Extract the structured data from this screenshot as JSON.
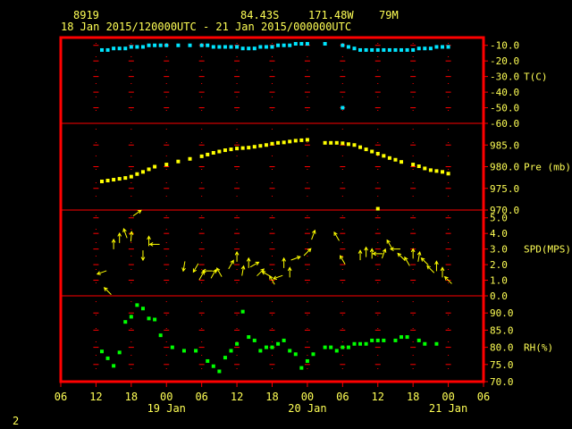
{
  "header": {
    "station": "8919",
    "lat": "84.43S",
    "lon": "171.48W",
    "elev": "79M",
    "time_range": "18 Jan 2015/120000UTC - 21 Jan 2015/000000UTC"
  },
  "page_number": "2",
  "colors": {
    "frame": "#ff0000",
    "grid": "#ff0000",
    "text": "#ffff55",
    "temp": "#00e5ff",
    "pres": "#ffff00",
    "wind": "#ffff00",
    "rh": "#00ff00"
  },
  "chart_data": {
    "type": "scatter",
    "x_units": "hours since 00 UTC 18 Jan 2015",
    "x_range": [
      6,
      78
    ],
    "x_ticks": [
      6,
      12,
      18,
      24,
      30,
      36,
      42,
      48,
      54,
      60,
      66,
      72,
      78
    ],
    "x_tick_labels": [
      "06",
      "12",
      "18",
      "00",
      "06",
      "12",
      "18",
      "00",
      "06",
      "12",
      "18",
      "00",
      "06"
    ],
    "day_labels": [
      {
        "x": 24,
        "text": "19 Jan"
      },
      {
        "x": 48,
        "text": "20 Jan"
      },
      {
        "x": 72,
        "text": "21 Jan"
      }
    ],
    "panels": [
      {
        "id": "temp",
        "label": "T(C)",
        "ylim": [
          -60,
          -5
        ],
        "ticks": [
          -10,
          -20,
          -30,
          -40,
          -50,
          -60
        ],
        "tick_labels": [
          "-10.0",
          "-20.0",
          "-30.0",
          "-40.0",
          "-50.0",
          "-60.0"
        ],
        "series": [
          {
            "marker": "square",
            "color": "#00e5ff",
            "points": [
              [
                13,
                -13
              ],
              [
                14,
                -13
              ],
              [
                15,
                -12
              ],
              [
                16,
                -12
              ],
              [
                17,
                -12
              ],
              [
                18,
                -11
              ],
              [
                19,
                -11
              ],
              [
                20,
                -11
              ],
              [
                21,
                -10
              ],
              [
                22,
                -10
              ],
              [
                23,
                -10
              ],
              [
                24,
                -10
              ],
              [
                26,
                -10
              ],
              [
                28,
                -10
              ],
              [
                30,
                -10
              ],
              [
                31,
                -10
              ],
              [
                32,
                -11
              ],
              [
                33,
                -11
              ],
              [
                34,
                -11
              ],
              [
                35,
                -11
              ],
              [
                36,
                -11
              ],
              [
                37,
                -12
              ],
              [
                38,
                -12
              ],
              [
                39,
                -12
              ],
              [
                40,
                -11
              ],
              [
                41,
                -11
              ],
              [
                42,
                -11
              ],
              [
                43,
                -10
              ],
              [
                44,
                -10
              ],
              [
                45,
                -10
              ],
              [
                46,
                -9
              ],
              [
                47,
                -9
              ],
              [
                48,
                -9
              ],
              [
                51,
                -9
              ],
              [
                54,
                -10
              ],
              [
                55,
                -11
              ],
              [
                56,
                -12
              ],
              [
                57,
                -13
              ],
              [
                58,
                -13
              ],
              [
                59,
                -13
              ],
              [
                60,
                -13
              ],
              [
                61,
                -13
              ],
              [
                62,
                -13
              ],
              [
                63,
                -13
              ],
              [
                64,
                -13
              ],
              [
                65,
                -13
              ],
              [
                66,
                -13
              ],
              [
                67,
                -12
              ],
              [
                68,
                -12
              ],
              [
                69,
                -12
              ],
              [
                70,
                -11
              ],
              [
                71,
                -11
              ],
              [
                72,
                -11
              ],
              [
                54,
                -50
              ]
            ]
          }
        ]
      },
      {
        "id": "pres",
        "label": "Pre (mb)",
        "ylim": [
          970,
          990
        ],
        "ticks": [
          970,
          975,
          980,
          985
        ],
        "tick_labels": [
          "970.0",
          "975.0",
          "980.0",
          "985.0"
        ],
        "series": [
          {
            "marker": "square",
            "color": "#ffff00",
            "points": [
              [
                13,
                976.6
              ],
              [
                14,
                976.8
              ],
              [
                15,
                977
              ],
              [
                16,
                977.2
              ],
              [
                17,
                977.4
              ],
              [
                18,
                977.7
              ],
              [
                19,
                978.3
              ],
              [
                20,
                978.8
              ],
              [
                21,
                979.4
              ],
              [
                22,
                980
              ],
              [
                24,
                980.5
              ],
              [
                26,
                981.2
              ],
              [
                28,
                981.8
              ],
              [
                30,
                982.4
              ],
              [
                31,
                982.8
              ],
              [
                32,
                983.2
              ],
              [
                33,
                983.5
              ],
              [
                34,
                983.8
              ],
              [
                35,
                984
              ],
              [
                36,
                984.2
              ],
              [
                37,
                984.3
              ],
              [
                38,
                984.4
              ],
              [
                39,
                984.6
              ],
              [
                40,
                984.8
              ],
              [
                41,
                985
              ],
              [
                42,
                985.3
              ],
              [
                43,
                985.5
              ],
              [
                44,
                985.6
              ],
              [
                45,
                985.8
              ],
              [
                46,
                986
              ],
              [
                47,
                986.1
              ],
              [
                48,
                986.2
              ],
              [
                51,
                985.5
              ],
              [
                52,
                985.5
              ],
              [
                53,
                985.5
              ],
              [
                54,
                985.4
              ],
              [
                55,
                985.2
              ],
              [
                56,
                985
              ],
              [
                57,
                984.5
              ],
              [
                58,
                984
              ],
              [
                59,
                983.5
              ],
              [
                60,
                983
              ],
              [
                61,
                982.5
              ],
              [
                62,
                982
              ],
              [
                63,
                981.6
              ],
              [
                64,
                981.1
              ],
              [
                66,
                980.5
              ],
              [
                67,
                980.1
              ],
              [
                68,
                979.6
              ],
              [
                69,
                979.2
              ],
              [
                70,
                979
              ],
              [
                71,
                978.8
              ],
              [
                72,
                978.4
              ],
              [
                60,
                970.3
              ]
            ]
          }
        ]
      },
      {
        "id": "wind",
        "label": "SPD(MPS)",
        "ylim": [
          0,
          5.5
        ],
        "ticks": [
          0,
          1,
          2,
          3,
          4,
          5
        ],
        "tick_labels": [
          "0.0",
          "1.0",
          "2.0",
          "3.0",
          "4.0",
          "5.0"
        ],
        "series": [
          {
            "marker": "arrow",
            "color": "#ffff00",
            "points": [
              [
                13,
                1.5,
                200
              ],
              [
                14,
                0.3,
                135
              ],
              [
                15,
                3.3,
                90
              ],
              [
                16,
                3.7,
                90
              ],
              [
                17,
                4.0,
                110
              ],
              [
                18,
                3.8,
                85
              ],
              [
                19,
                5.3,
                35
              ],
              [
                20,
                2.6,
                270
              ],
              [
                21,
                3.5,
                90
              ],
              [
                22,
                3.3,
                180
              ],
              [
                27,
                1.9,
                260
              ],
              [
                29,
                1.8,
                240
              ],
              [
                30,
                1.3,
                60
              ],
              [
                31,
                1.6,
                180
              ],
              [
                32,
                1.4,
                60
              ],
              [
                33,
                1.5,
                120
              ],
              [
                35,
                2.0,
                60
              ],
              [
                36,
                2.5,
                90
              ],
              [
                37,
                1.6,
                80
              ],
              [
                38,
                2.1,
                90
              ],
              [
                39,
                2.0,
                30
              ],
              [
                40,
                1.5,
                45
              ],
              [
                41,
                1.4,
                150
              ],
              [
                42,
                1.0,
                120
              ],
              [
                43,
                1.2,
                200
              ],
              [
                44,
                2.1,
                90
              ],
              [
                45,
                1.5,
                90
              ],
              [
                46,
                2.4,
                20
              ],
              [
                48,
                2.8,
                45
              ],
              [
                49,
                3.9,
                70
              ],
              [
                53,
                3.8,
                120
              ],
              [
                54,
                2.3,
                120
              ],
              [
                57,
                2.6,
                90
              ],
              [
                58,
                2.8,
                90
              ],
              [
                59,
                2.7,
                90
              ],
              [
                60,
                2.7,
                180
              ],
              [
                61,
                2.7,
                70
              ],
              [
                62,
                3.3,
                120
              ],
              [
                63,
                3.0,
                180
              ],
              [
                64,
                2.5,
                135
              ],
              [
                65,
                2.2,
                120
              ],
              [
                66,
                2.7,
                90
              ],
              [
                67,
                2.5,
                80
              ],
              [
                68,
                2.2,
                135
              ],
              [
                69,
                1.7,
                135
              ],
              [
                70,
                1.9,
                90
              ],
              [
                71,
                1.5,
                90
              ],
              [
                72,
                1.0,
                135
              ]
            ]
          }
        ]
      },
      {
        "id": "rh",
        "label": "RH(%)",
        "ylim": [
          70,
          95
        ],
        "ticks": [
          70,
          75,
          80,
          85,
          90
        ],
        "tick_labels": [
          "70.0",
          "75.0",
          "80.0",
          "85.0",
          "90.0"
        ],
        "series": [
          {
            "marker": "square",
            "color": "#00ff00",
            "points": [
              [
                13,
                78.8
              ],
              [
                14,
                76.8
              ],
              [
                15,
                74.6
              ],
              [
                16,
                78.5
              ],
              [
                17,
                87.4
              ],
              [
                18,
                88.9
              ],
              [
                19,
                92.3
              ],
              [
                20,
                91.3
              ],
              [
                21,
                88.4
              ],
              [
                22,
                88.1
              ],
              [
                23,
                83.5
              ],
              [
                25,
                80
              ],
              [
                27,
                79
              ],
              [
                29,
                79
              ],
              [
                31,
                76
              ],
              [
                32,
                74.5
              ],
              [
                33,
                73
              ],
              [
                34,
                77
              ],
              [
                35,
                79
              ],
              [
                36,
                81
              ],
              [
                37,
                90.4
              ],
              [
                38,
                83
              ],
              [
                39,
                82
              ],
              [
                40,
                79
              ],
              [
                41,
                80
              ],
              [
                42,
                80
              ],
              [
                43,
                81
              ],
              [
                44,
                82
              ],
              [
                45,
                79
              ],
              [
                46,
                78
              ],
              [
                47,
                74
              ],
              [
                48,
                76
              ],
              [
                49,
                78
              ],
              [
                51,
                80
              ],
              [
                52,
                80
              ],
              [
                53,
                79
              ],
              [
                54,
                80
              ],
              [
                55,
                80
              ],
              [
                56,
                81
              ],
              [
                57,
                81
              ],
              [
                58,
                81
              ],
              [
                59,
                82
              ],
              [
                60,
                82
              ],
              [
                61,
                82
              ],
              [
                63,
                82
              ],
              [
                64,
                83
              ],
              [
                65,
                83
              ],
              [
                67,
                82
              ],
              [
                68,
                81
              ],
              [
                70,
                81
              ]
            ]
          }
        ]
      }
    ]
  }
}
